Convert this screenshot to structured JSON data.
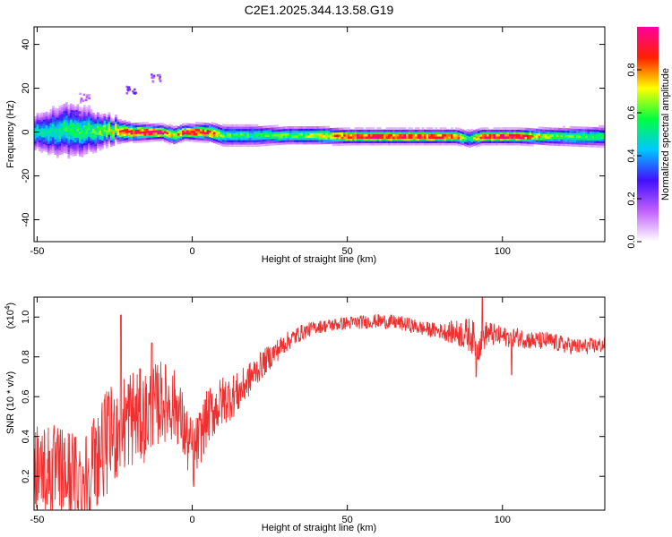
{
  "title": "C2E1.2025.344.13.58.G19",
  "chart_data": [
    {
      "type": "heatmap",
      "xlabel": "Height of straight line (km)",
      "ylabel": "Frequency (Hz)",
      "xlim": [
        -51,
        133
      ],
      "ylim": [
        -50,
        48
      ],
      "xticks": [
        -50,
        0,
        50,
        100
      ],
      "yticks": [
        -40,
        -20,
        0,
        20,
        40
      ],
      "colorbar": {
        "label": "Normalized spectral amplitude",
        "range": [
          0,
          1
        ],
        "ticks": [
          "0.0",
          "0.2",
          "0.4",
          "0.6",
          "0.8"
        ],
        "colors": [
          "#ffffff",
          "#c060ff",
          "#4010ff",
          "#00c8ff",
          "#00ff40",
          "#ffff00",
          "#ff2000",
          "#ff00a0"
        ]
      },
      "ridge": [
        {
          "x": -51,
          "y": 0,
          "width": 6.0,
          "amp": 0.45
        },
        {
          "x": -45,
          "y": 0.5,
          "width": 8.0,
          "amp": 0.5
        },
        {
          "x": -40,
          "y": 1.5,
          "width": 9.0,
          "amp": 0.55
        },
        {
          "x": -35,
          "y": 0.5,
          "width": 8.0,
          "amp": 0.55
        },
        {
          "x": -30,
          "y": 0.5,
          "width": 6.0,
          "amp": 0.6
        },
        {
          "x": -25,
          "y": 0.5,
          "width": 4.0,
          "amp": 0.75
        },
        {
          "x": -20,
          "y": 0,
          "width": 3.0,
          "amp": 0.95
        },
        {
          "x": -10,
          "y": 0,
          "width": 2.5,
          "amp": 0.95
        },
        {
          "x": -6,
          "y": -1.5,
          "width": 3.0,
          "amp": 0.7
        },
        {
          "x": -3,
          "y": 0,
          "width": 2.5,
          "amp": 0.95
        },
        {
          "x": 5,
          "y": 0,
          "width": 3.0,
          "amp": 0.9
        },
        {
          "x": 10,
          "y": -1.5,
          "width": 3.5,
          "amp": 0.6
        },
        {
          "x": 20,
          "y": -1.5,
          "width": 3.5,
          "amp": 0.55
        },
        {
          "x": 30,
          "y": -1.5,
          "width": 3.0,
          "amp": 0.6
        },
        {
          "x": 40,
          "y": -1.5,
          "width": 3.0,
          "amp": 0.7
        },
        {
          "x": 50,
          "y": -2,
          "width": 2.5,
          "amp": 0.9
        },
        {
          "x": 70,
          "y": -2,
          "width": 2.5,
          "amp": 0.9
        },
        {
          "x": 85,
          "y": -2,
          "width": 2.5,
          "amp": 0.85
        },
        {
          "x": 89,
          "y": -3,
          "width": 3.0,
          "amp": 0.5
        },
        {
          "x": 93,
          "y": -2,
          "width": 2.5,
          "amp": 0.9
        },
        {
          "x": 105,
          "y": -2,
          "width": 2.5,
          "amp": 0.95
        },
        {
          "x": 115,
          "y": -2,
          "width": 3.0,
          "amp": 0.6
        },
        {
          "x": 133,
          "y": -2,
          "width": 3.5,
          "amp": 0.55
        }
      ],
      "blobs": [
        {
          "x": -38,
          "y": 8,
          "amp": 0.3
        },
        {
          "x": -20,
          "y": 20,
          "amp": 0.25
        },
        {
          "x": -12,
          "y": 25,
          "amp": 0.2
        },
        {
          "x": -35,
          "y": 16,
          "amp": 0.15
        }
      ]
    },
    {
      "type": "line",
      "xlabel": "Height of straight line (km)",
      "ylabel": "SNR (10 * v/v)",
      "yscale_label": "(x10",
      "yscale_exp": "4",
      "xlim": [
        -51,
        133
      ],
      "ylim": [
        0.03,
        1.1
      ],
      "xticks": [
        -50,
        0,
        50,
        100
      ],
      "yticks": [
        "0.2",
        "0.4",
        "0.6",
        "0.8",
        "1.0"
      ],
      "color": "#ee3030",
      "envelope": {
        "x": [
          -51,
          -45,
          -40,
          -35,
          -30,
          -25,
          -20,
          -15,
          -10,
          -5,
          -1,
          1,
          5,
          10,
          15,
          20,
          25,
          30,
          35,
          40,
          45,
          50,
          55,
          60,
          65,
          70,
          75,
          80,
          85,
          90,
          92,
          95,
          100,
          105,
          110,
          115,
          120,
          125,
          133
        ],
        "y": [
          0.28,
          0.22,
          0.2,
          0.18,
          0.32,
          0.42,
          0.5,
          0.5,
          0.58,
          0.55,
          0.35,
          0.34,
          0.5,
          0.58,
          0.62,
          0.72,
          0.8,
          0.87,
          0.92,
          0.95,
          0.96,
          0.97,
          0.975,
          0.98,
          0.975,
          0.96,
          0.94,
          0.93,
          0.92,
          0.91,
          0.85,
          0.92,
          0.9,
          0.9,
          0.88,
          0.88,
          0.86,
          0.85,
          0.86
        ]
      },
      "noise": {
        "x": [
          -51,
          -30,
          -20,
          -10,
          0,
          10,
          20,
          30,
          40,
          80,
          90,
          95,
          100,
          133
        ],
        "y": [
          0.18,
          0.2,
          0.2,
          0.16,
          0.12,
          0.1,
          0.06,
          0.04,
          0.025,
          0.03,
          0.07,
          0.05,
          0.04,
          0.03
        ]
      },
      "spikes": [
        {
          "x": -23,
          "y": 1.01
        },
        {
          "x": -13,
          "y": 0.87
        },
        {
          "x": 0.5,
          "y": 0.15
        },
        {
          "x": 93.5,
          "y": 1.1
        },
        {
          "x": 91.5,
          "y": 0.7
        },
        {
          "x": 103,
          "y": 0.71
        }
      ]
    }
  ]
}
